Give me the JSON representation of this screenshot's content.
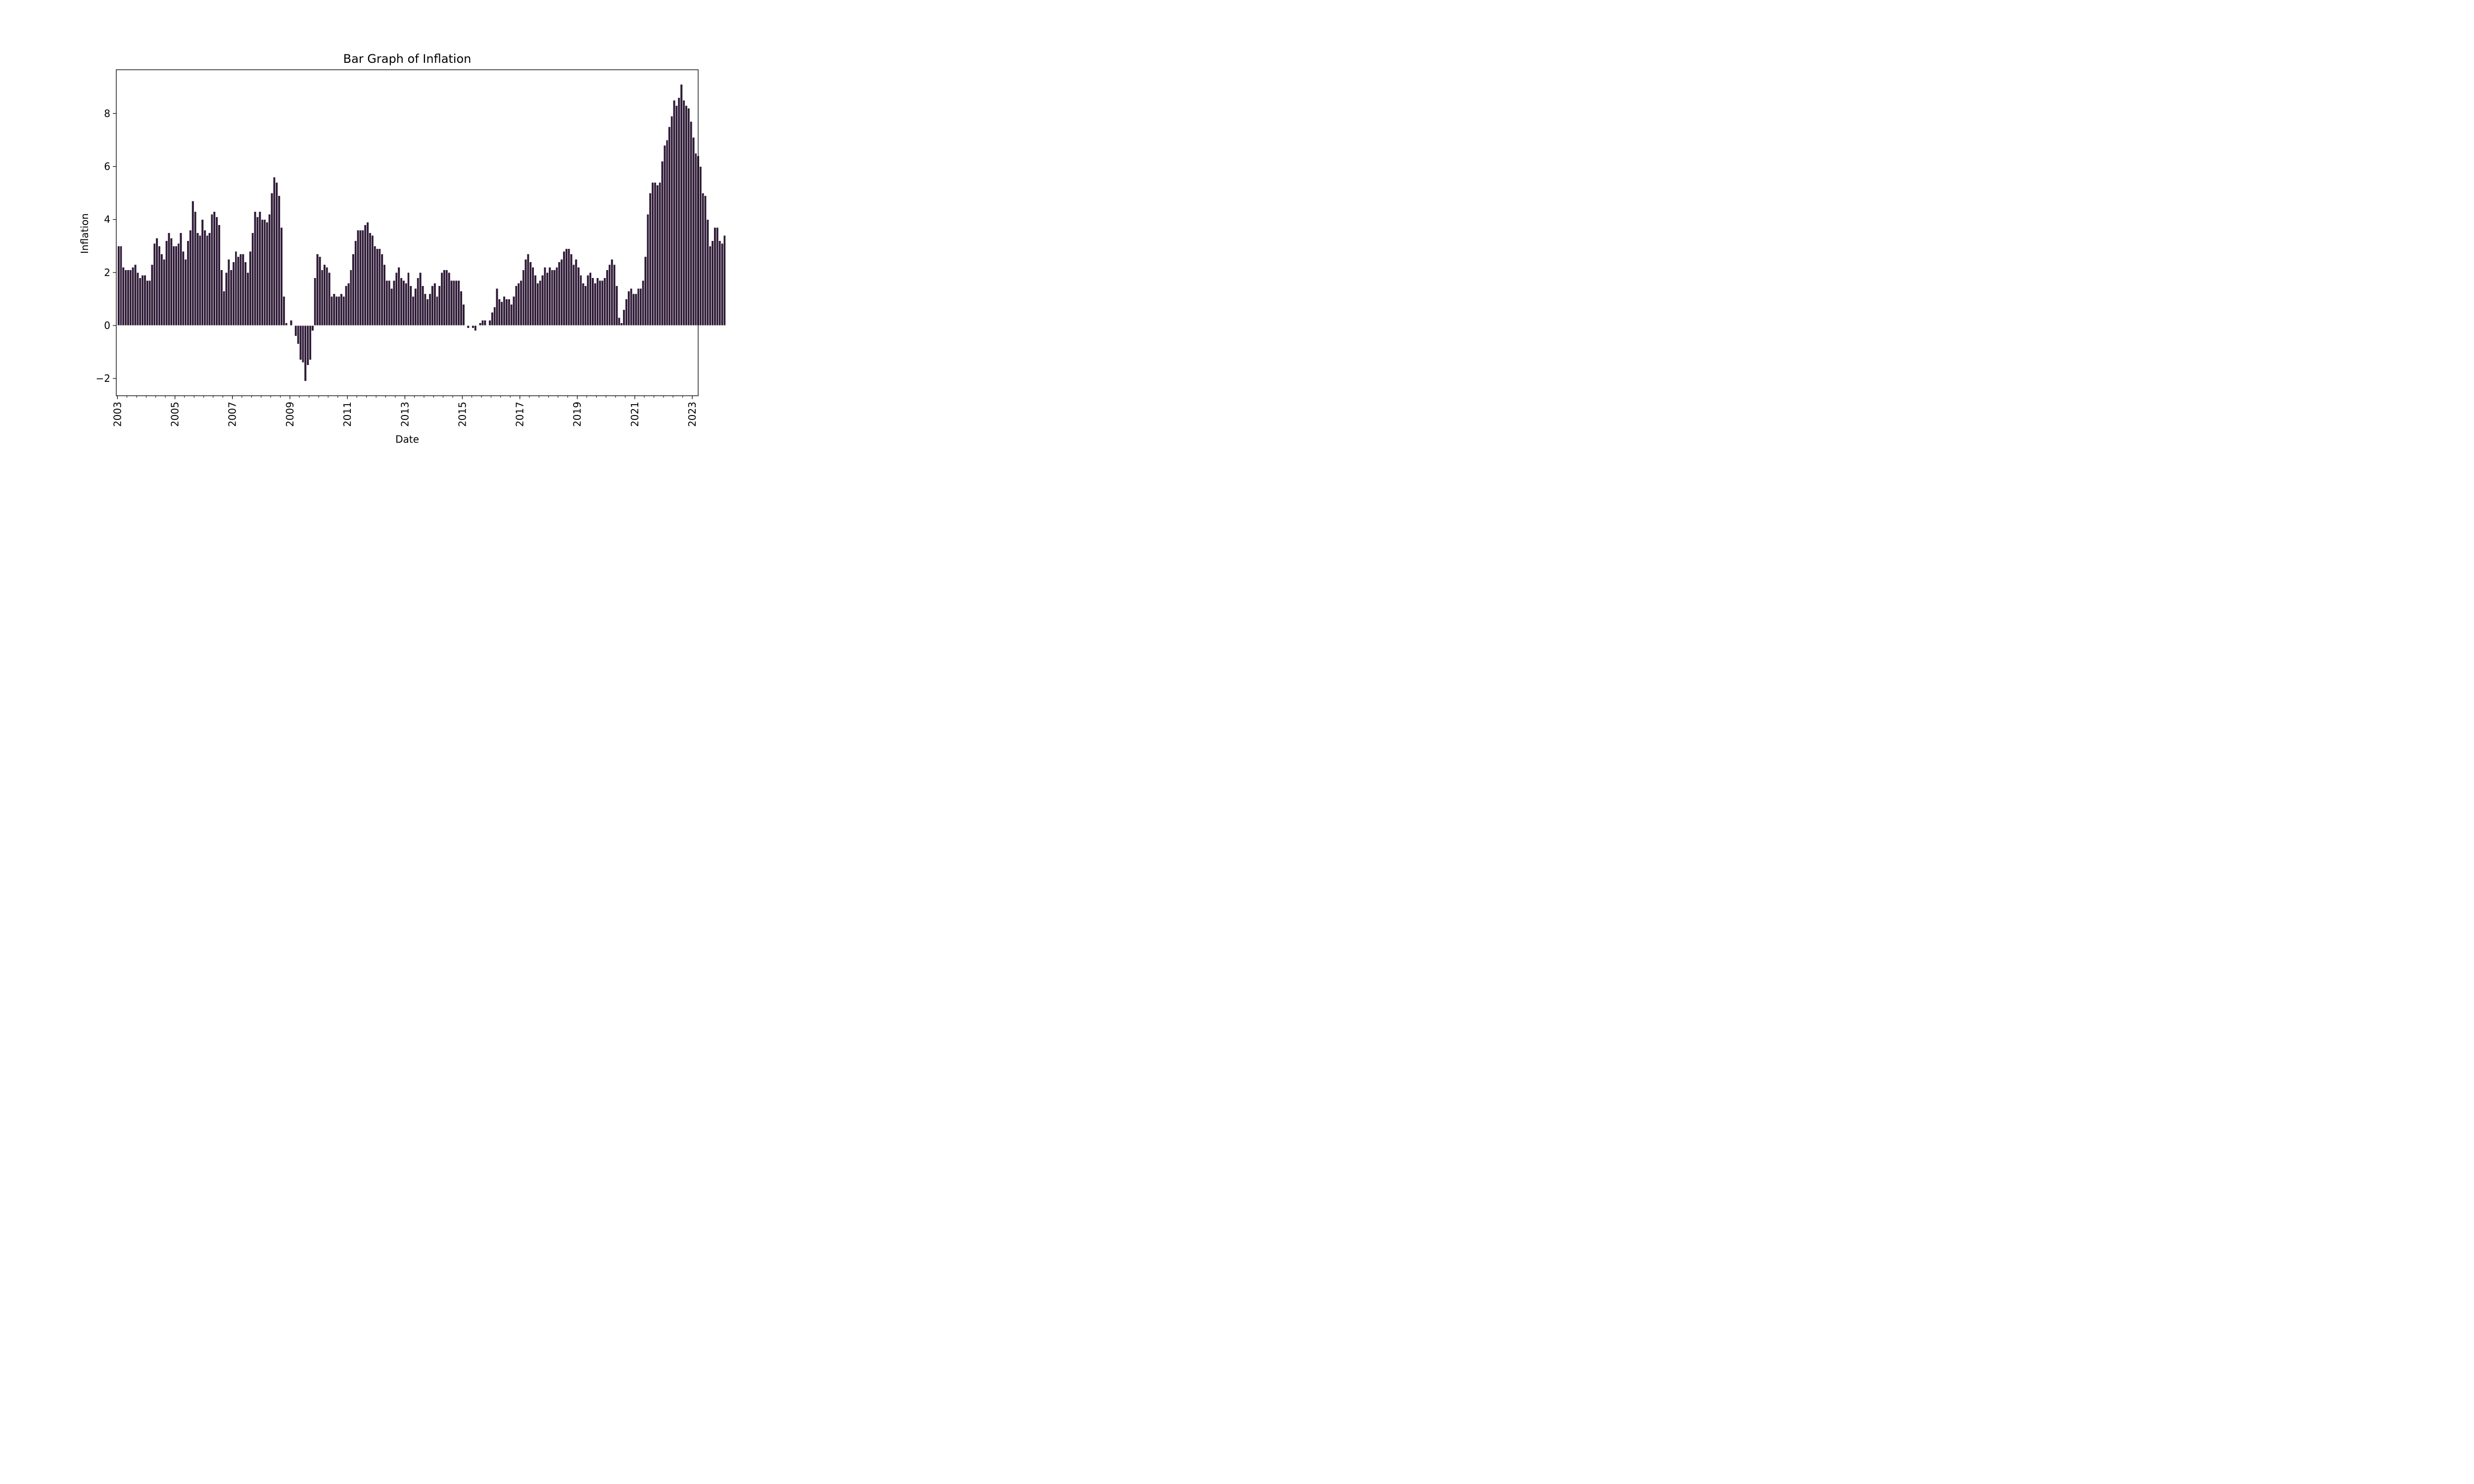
{
  "chart_data": {
    "type": "bar",
    "title": "Bar Graph of Inflation",
    "xlabel": "Date",
    "ylabel": "Inflation",
    "ylim": [
      -2.65,
      9.65
    ],
    "yticks": [
      -2,
      0,
      2,
      4,
      6,
      8
    ],
    "yticklabels": [
      "−2",
      "0",
      "2",
      "4",
      "6",
      "8"
    ],
    "xlim": [
      "2002-12-17",
      "2023-03-17"
    ],
    "xticks": [
      "2003-01-01",
      "2005-01-01",
      "2007-01-01",
      "2009-01-01",
      "2011-01-01",
      "2013-01-01",
      "2015-01-01",
      "2017-01-01",
      "2019-01-01",
      "2021-01-01",
      "2023-01-01"
    ],
    "xticklabels": [
      "2003",
      "2005",
      "2007",
      "2009",
      "2011",
      "2013",
      "2015",
      "2017",
      "2019",
      "2021",
      "2023"
    ],
    "minor_ticks": "every 4 months",
    "grid": false,
    "bar_color": "#2e1a36",
    "bar_edge_color": "#ffffff",
    "start_month": "2003-01",
    "frequency": "monthly",
    "values": [
      3.0,
      3.0,
      2.2,
      2.1,
      2.1,
      2.1,
      2.2,
      2.3,
      2.0,
      1.8,
      1.9,
      1.9,
      1.7,
      1.7,
      2.3,
      3.1,
      3.3,
      3.0,
      2.7,
      2.5,
      3.2,
      3.5,
      3.3,
      3.0,
      3.0,
      3.1,
      3.5,
      2.8,
      2.5,
      3.2,
      3.6,
      4.7,
      4.3,
      3.5,
      3.4,
      4.0,
      3.6,
      3.4,
      3.5,
      4.2,
      4.3,
      4.1,
      3.8,
      2.1,
      1.3,
      2.0,
      2.5,
      2.1,
      2.4,
      2.8,
      2.6,
      2.7,
      2.7,
      2.4,
      2.0,
      2.8,
      3.5,
      4.3,
      4.1,
      4.3,
      4.0,
      4.0,
      3.9,
      4.2,
      5.0,
      5.6,
      5.4,
      4.9,
      3.7,
      1.1,
      0.1,
      0.0,
      0.2,
      0.0,
      -0.4,
      -0.7,
      -1.3,
      -1.4,
      -2.1,
      -1.5,
      -1.3,
      -0.2,
      1.8,
      2.7,
      2.6,
      2.1,
      2.3,
      2.2,
      2.0,
      1.1,
      1.2,
      1.1,
      1.1,
      1.2,
      1.1,
      1.5,
      1.6,
      2.1,
      2.7,
      3.2,
      3.6,
      3.6,
      3.6,
      3.8,
      3.9,
      3.5,
      3.4,
      3.0,
      2.9,
      2.9,
      2.7,
      2.3,
      1.7,
      1.7,
      1.4,
      1.7,
      2.0,
      2.2,
      1.8,
      1.7,
      1.6,
      2.0,
      1.5,
      1.1,
      1.4,
      1.8,
      2.0,
      1.5,
      1.2,
      1.0,
      1.2,
      1.5,
      1.6,
      1.1,
      1.5,
      2.0,
      2.1,
      2.1,
      2.0,
      1.7,
      1.7,
      1.7,
      1.7,
      1.3,
      0.8,
      0.0,
      -0.1,
      0.0,
      -0.1,
      -0.2,
      0.0,
      0.1,
      0.2,
      0.2,
      0.0,
      0.2,
      0.5,
      0.7,
      1.4,
      1.0,
      0.9,
      1.1,
      1.0,
      1.0,
      0.8,
      1.1,
      1.5,
      1.6,
      1.7,
      2.1,
      2.5,
      2.7,
      2.4,
      2.2,
      1.9,
      1.6,
      1.7,
      1.9,
      2.2,
      2.0,
      2.2,
      2.1,
      2.1,
      2.2,
      2.4,
      2.5,
      2.8,
      2.9,
      2.9,
      2.7,
      2.3,
      2.5,
      2.2,
      1.9,
      1.6,
      1.5,
      1.9,
      2.0,
      1.8,
      1.6,
      1.8,
      1.7,
      1.7,
      1.8,
      2.1,
      2.3,
      2.5,
      2.3,
      1.5,
      0.3,
      0.1,
      0.6,
      1.0,
      1.3,
      1.4,
      1.2,
      1.2,
      1.4,
      1.4,
      1.7,
      2.6,
      4.2,
      5.0,
      5.4,
      5.4,
      5.3,
      5.4,
      6.2,
      6.8,
      7.0,
      7.5,
      7.9,
      8.5,
      8.3,
      8.6,
      9.1,
      8.5,
      8.3,
      8.2,
      7.7,
      7.1,
      6.5,
      6.4,
      6.0,
      5.0,
      4.9,
      4.0,
      3.0,
      3.2,
      3.7,
      3.7,
      3.2,
      3.1,
      3.4
    ]
  }
}
